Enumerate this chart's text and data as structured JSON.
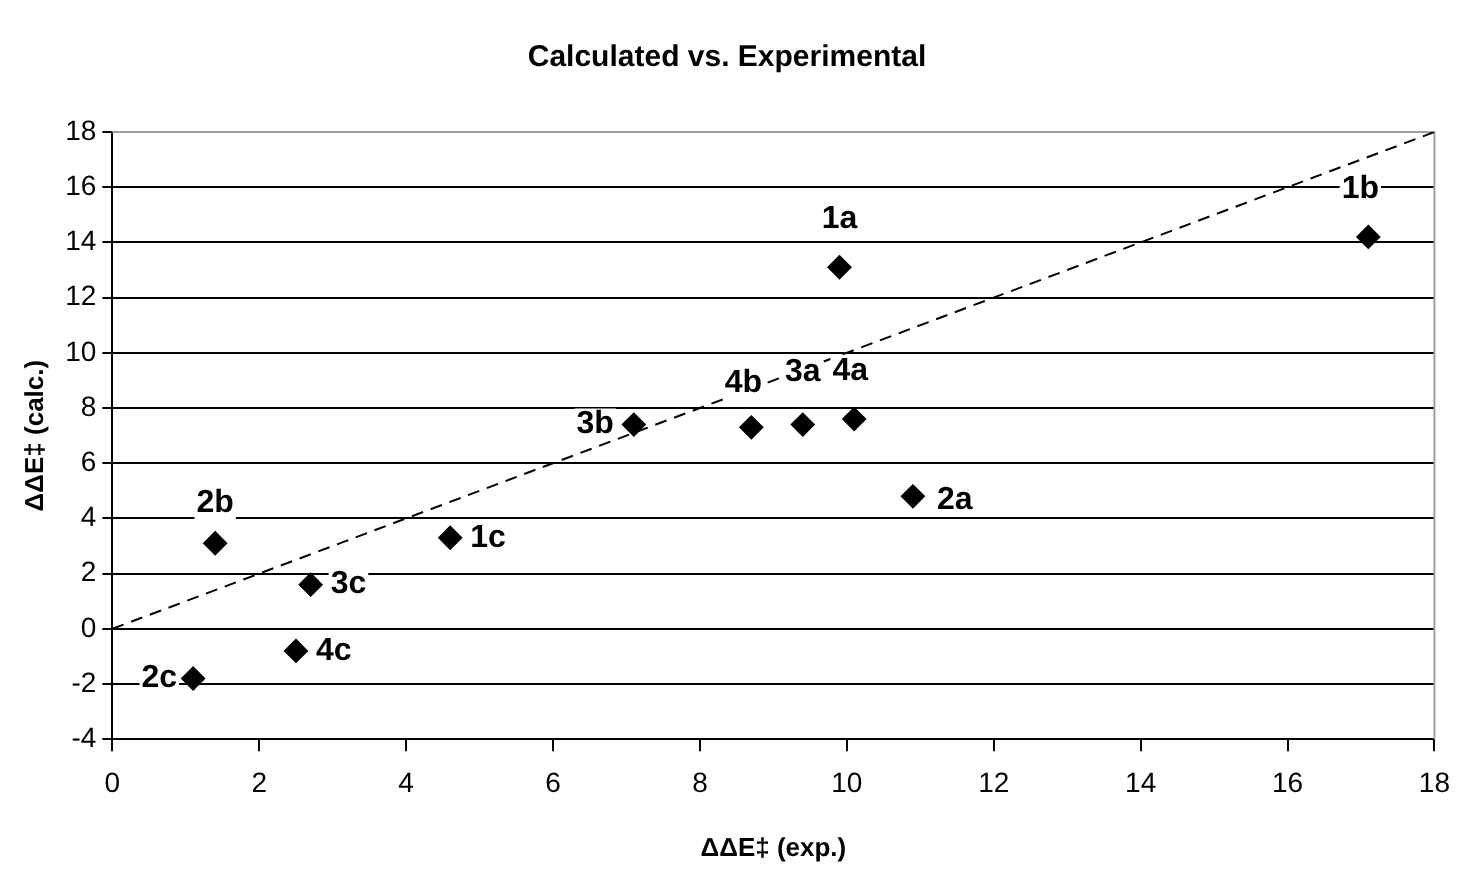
{
  "chart_data": {
    "type": "scatter",
    "title": "Calculated vs. Experimental",
    "xlabel": "ΔΔE‡ (exp.)",
    "ylabel": "ΔΔE‡ (calc.)",
    "xlim": [
      0,
      18
    ],
    "xticks": [
      0,
      2,
      4,
      6,
      8,
      10,
      12,
      14,
      16,
      18
    ],
    "ylim": [
      -4,
      18
    ],
    "yticks": [
      -4,
      -2,
      0,
      2,
      4,
      6,
      8,
      10,
      12,
      14,
      16,
      18
    ],
    "grid": "y",
    "legend": false,
    "series": [
      {
        "color": "#000000",
        "marker": "diamond",
        "x": [
          1.1,
          1.4,
          2.5,
          2.7,
          4.6,
          7.1,
          8.7,
          9.4,
          10.1,
          9.9,
          10.9,
          17.1
        ],
        "values": [
          -1.8,
          3.1,
          -0.8,
          1.6,
          3.3,
          7.4,
          7.3,
          7.4,
          7.6,
          13.1,
          4.8,
          14.2
        ]
      },
      {
        "type": "line",
        "color": "#000000",
        "x": [
          0,
          18
        ],
        "values": [
          0,
          18
        ],
        "line_style": "dashed",
        "marker": "none"
      }
    ],
    "annotations": [
      {
        "text": "2c",
        "x": 1.1,
        "y": -1.8
      },
      {
        "text": "2b",
        "x": 1.4,
        "y": 3.1
      },
      {
        "text": "4c",
        "x": 2.5,
        "y": -0.8
      },
      {
        "text": "3c",
        "x": 2.7,
        "y": 1.6
      },
      {
        "text": "1c",
        "x": 4.6,
        "y": 3.3
      },
      {
        "text": "3b",
        "x": 7.1,
        "y": 7.4
      },
      {
        "text": "4b",
        "x": 8.7,
        "y": 7.3
      },
      {
        "text": "3a",
        "x": 9.4,
        "y": 7.4
      },
      {
        "text": "4a",
        "x": 10.1,
        "y": 7.6
      },
      {
        "text": "1a",
        "x": 9.9,
        "y": 13.1
      },
      {
        "text": "2a",
        "x": 10.9,
        "y": 4.8
      },
      {
        "text": "1b",
        "x": 17.1,
        "y": 14.2
      }
    ]
  }
}
